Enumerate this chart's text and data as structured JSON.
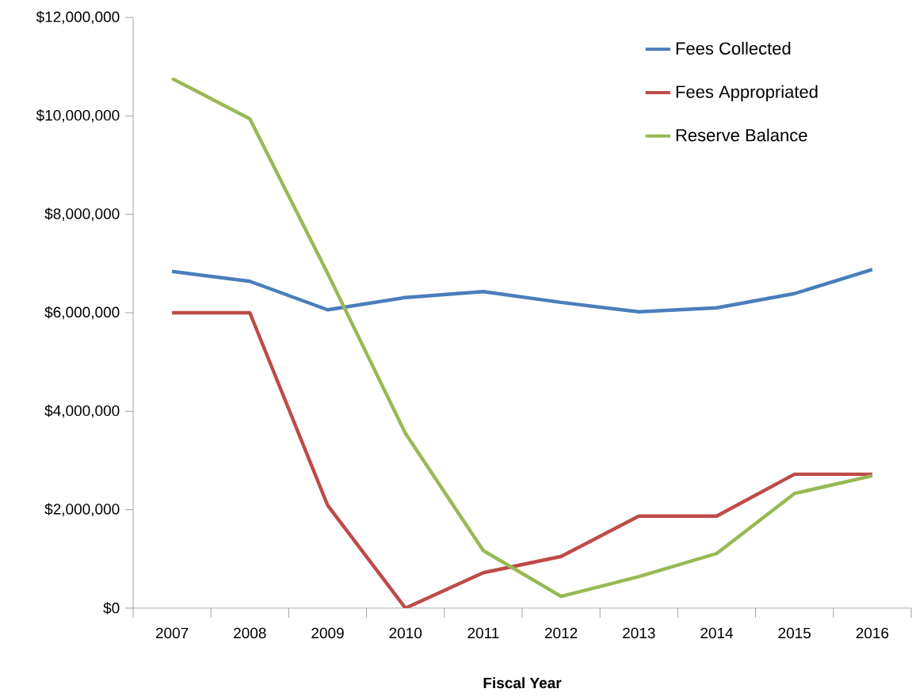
{
  "chart_data": {
    "type": "line",
    "xlabel": "Fiscal Year",
    "categories": [
      "2007",
      "2008",
      "2009",
      "2010",
      "2011",
      "2012",
      "2013",
      "2014",
      "2015",
      "2016"
    ],
    "series": [
      {
        "name": "Fees Collected",
        "color": "#4a7ebb",
        "values": [
          6840000,
          6640000,
          6060000,
          6310000,
          6430000,
          6210000,
          6020000,
          6100000,
          6390000,
          6880000
        ]
      },
      {
        "name": "Fees Appropriated",
        "color": "#be4b48",
        "values": [
          6000000,
          6000000,
          2090000,
          0,
          720000,
          1050000,
          1870000,
          1870000,
          2720000,
          2720000
        ]
      },
      {
        "name": "Reserve Balance",
        "color": "#98b954",
        "values": [
          10760000,
          9940000,
          6800000,
          3550000,
          1170000,
          240000,
          640000,
          1110000,
          2330000,
          2690000
        ]
      }
    ],
    "ylim": [
      0,
      12000000
    ],
    "yticks": [
      {
        "value": 0,
        "label": "$0"
      },
      {
        "value": 2000000,
        "label": "$2,000,000"
      },
      {
        "value": 4000000,
        "label": "$4,000,000"
      },
      {
        "value": 6000000,
        "label": "$6,000,000"
      },
      {
        "value": 8000000,
        "label": "$8,000,000"
      },
      {
        "value": 10000000,
        "label": "$10,000,000"
      },
      {
        "value": 12000000,
        "label": "$12,000,000"
      }
    ],
    "grid": false,
    "legend": "top right",
    "marker": "none",
    "line_style": "solid"
  }
}
